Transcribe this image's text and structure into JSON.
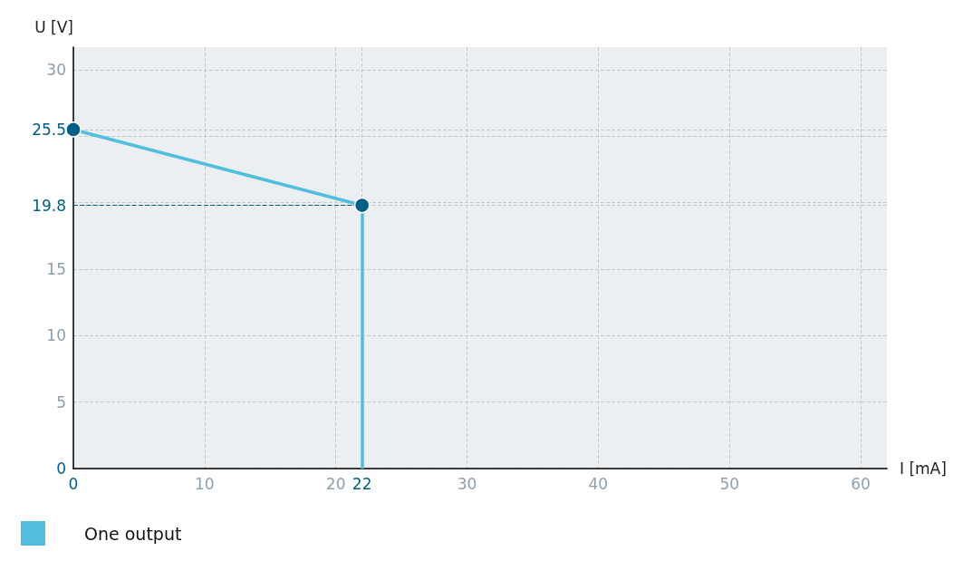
{
  "chart_data": {
    "type": "line",
    "xlabel": "I [mA]",
    "ylabel": "U [V]",
    "x": [
      0,
      22
    ],
    "series": [
      {
        "name": "One output",
        "color": "#50bedc",
        "colors": [
          "#005f87",
          "#005f87"
        ],
        "values": [
          25.5,
          19.8
        ]
      }
    ],
    "xlim": [
      0,
      62
    ],
    "xticks": [
      0,
      10,
      20,
      22,
      30,
      40,
      50,
      60
    ],
    "ylim": [
      0,
      31.7
    ],
    "yticks": [
      0,
      5,
      10,
      15,
      19.8,
      {
        "value": 20,
        "label": null
      },
      {
        "value": 25,
        "label": null
      },
      25.5,
      30
    ],
    "ref_lines": [
      {
        "axis": "x",
        "value": 22,
        "color": "#50bedc",
        "line_style": "solid"
      },
      {
        "axis": "y",
        "value": 19.8,
        "color": "#005f87",
        "line_style": "dashed"
      }
    ],
    "grid": true,
    "legend": "bottom left",
    "marker": "circle",
    "line_style": "solid"
  }
}
